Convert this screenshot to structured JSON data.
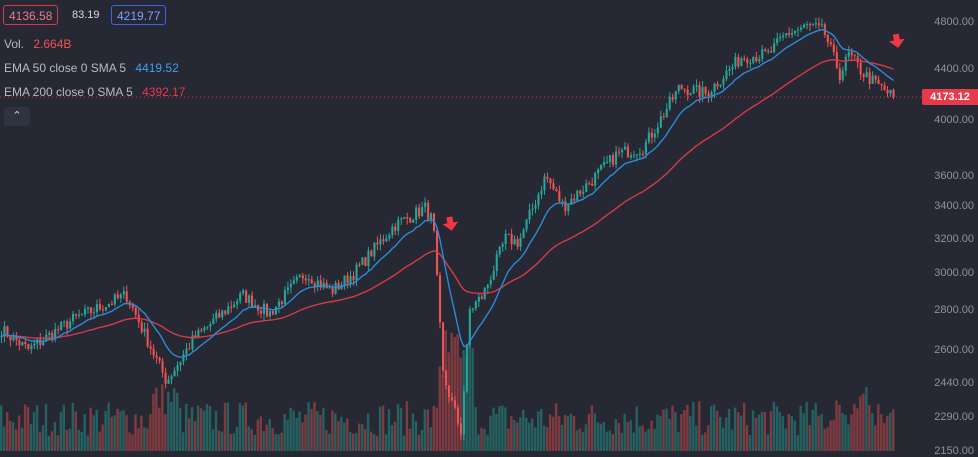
{
  "legend": {
    "bid": "4136.58",
    "spread": "83.19",
    "ask": "4219.77",
    "vol_label": "Vol.",
    "vol_value": "2.664B",
    "ema50_label": "EMA 50 close 0 SMA 5",
    "ema50_value": "4419.52",
    "ema200_label": "EMA 200 close 0 SMA 5",
    "ema200_value": "4392.17",
    "collapse_icon": "chevron-up-icon"
  },
  "colors": {
    "background": "#262833",
    "up": "#26a69a",
    "down": "#ef5350",
    "ema50": "#2a8bd8",
    "ema200": "#d63a48",
    "last_price": "#e8394a",
    "arrow": "#f23645"
  },
  "chart_data": {
    "type": "candlestick",
    "last_price": 4173.12,
    "y_scale": "log",
    "ylim": [
      2150,
      4950
    ],
    "y_ticks": [
      4800,
      4400,
      4000,
      3600,
      3400,
      3200,
      3000,
      2800,
      2600,
      2440,
      2290,
      2150
    ],
    "y_tick_labels": [
      "4800.00",
      "4400.00",
      "4000.00",
      "3600.00",
      "3400.00",
      "3200.00",
      "3000.00",
      "2800.00",
      "2600.00",
      "2440.00",
      "2290.00",
      "2150.00"
    ],
    "price_anchors": [
      [
        0,
        2700
      ],
      [
        0.03,
        2600
      ],
      [
        0.08,
        2750
      ],
      [
        0.14,
        2880
      ],
      [
        0.15,
        2780
      ],
      [
        0.185,
        2450
      ],
      [
        0.215,
        2650
      ],
      [
        0.27,
        2880
      ],
      [
        0.3,
        2780
      ],
      [
        0.34,
        3000
      ],
      [
        0.37,
        2900
      ],
      [
        0.395,
        3000
      ],
      [
        0.44,
        3280
      ],
      [
        0.475,
        3390
      ],
      [
        0.484,
        3300
      ],
      [
        0.495,
        2480
      ],
      [
        0.515,
        2230
      ],
      [
        0.525,
        2800
      ],
      [
        0.54,
        2880
      ],
      [
        0.565,
        3200
      ],
      [
        0.58,
        3180
      ],
      [
        0.61,
        3600
      ],
      [
        0.63,
        3400
      ],
      [
        0.66,
        3560
      ],
      [
        0.69,
        3750
      ],
      [
        0.72,
        3800
      ],
      [
        0.76,
        4250
      ],
      [
        0.79,
        4200
      ],
      [
        0.83,
        4500
      ],
      [
        0.86,
        4520
      ],
      [
        0.88,
        4700
      ],
      [
        0.905,
        4770
      ],
      [
        0.922,
        4720
      ],
      [
        0.94,
        4350
      ],
      [
        0.95,
        4520
      ],
      [
        0.965,
        4370
      ],
      [
        0.98,
        4280
      ],
      [
        1.0,
        4173.12
      ]
    ],
    "ema50_last": 4419.52,
    "ema200_last": 4392.17,
    "volume_label": "Vol.",
    "volume_last": "2.664B",
    "annotations": [
      {
        "type": "down-arrow",
        "near_index": 0.49
      },
      {
        "type": "down-arrow",
        "near_index": 1.0
      }
    ]
  }
}
